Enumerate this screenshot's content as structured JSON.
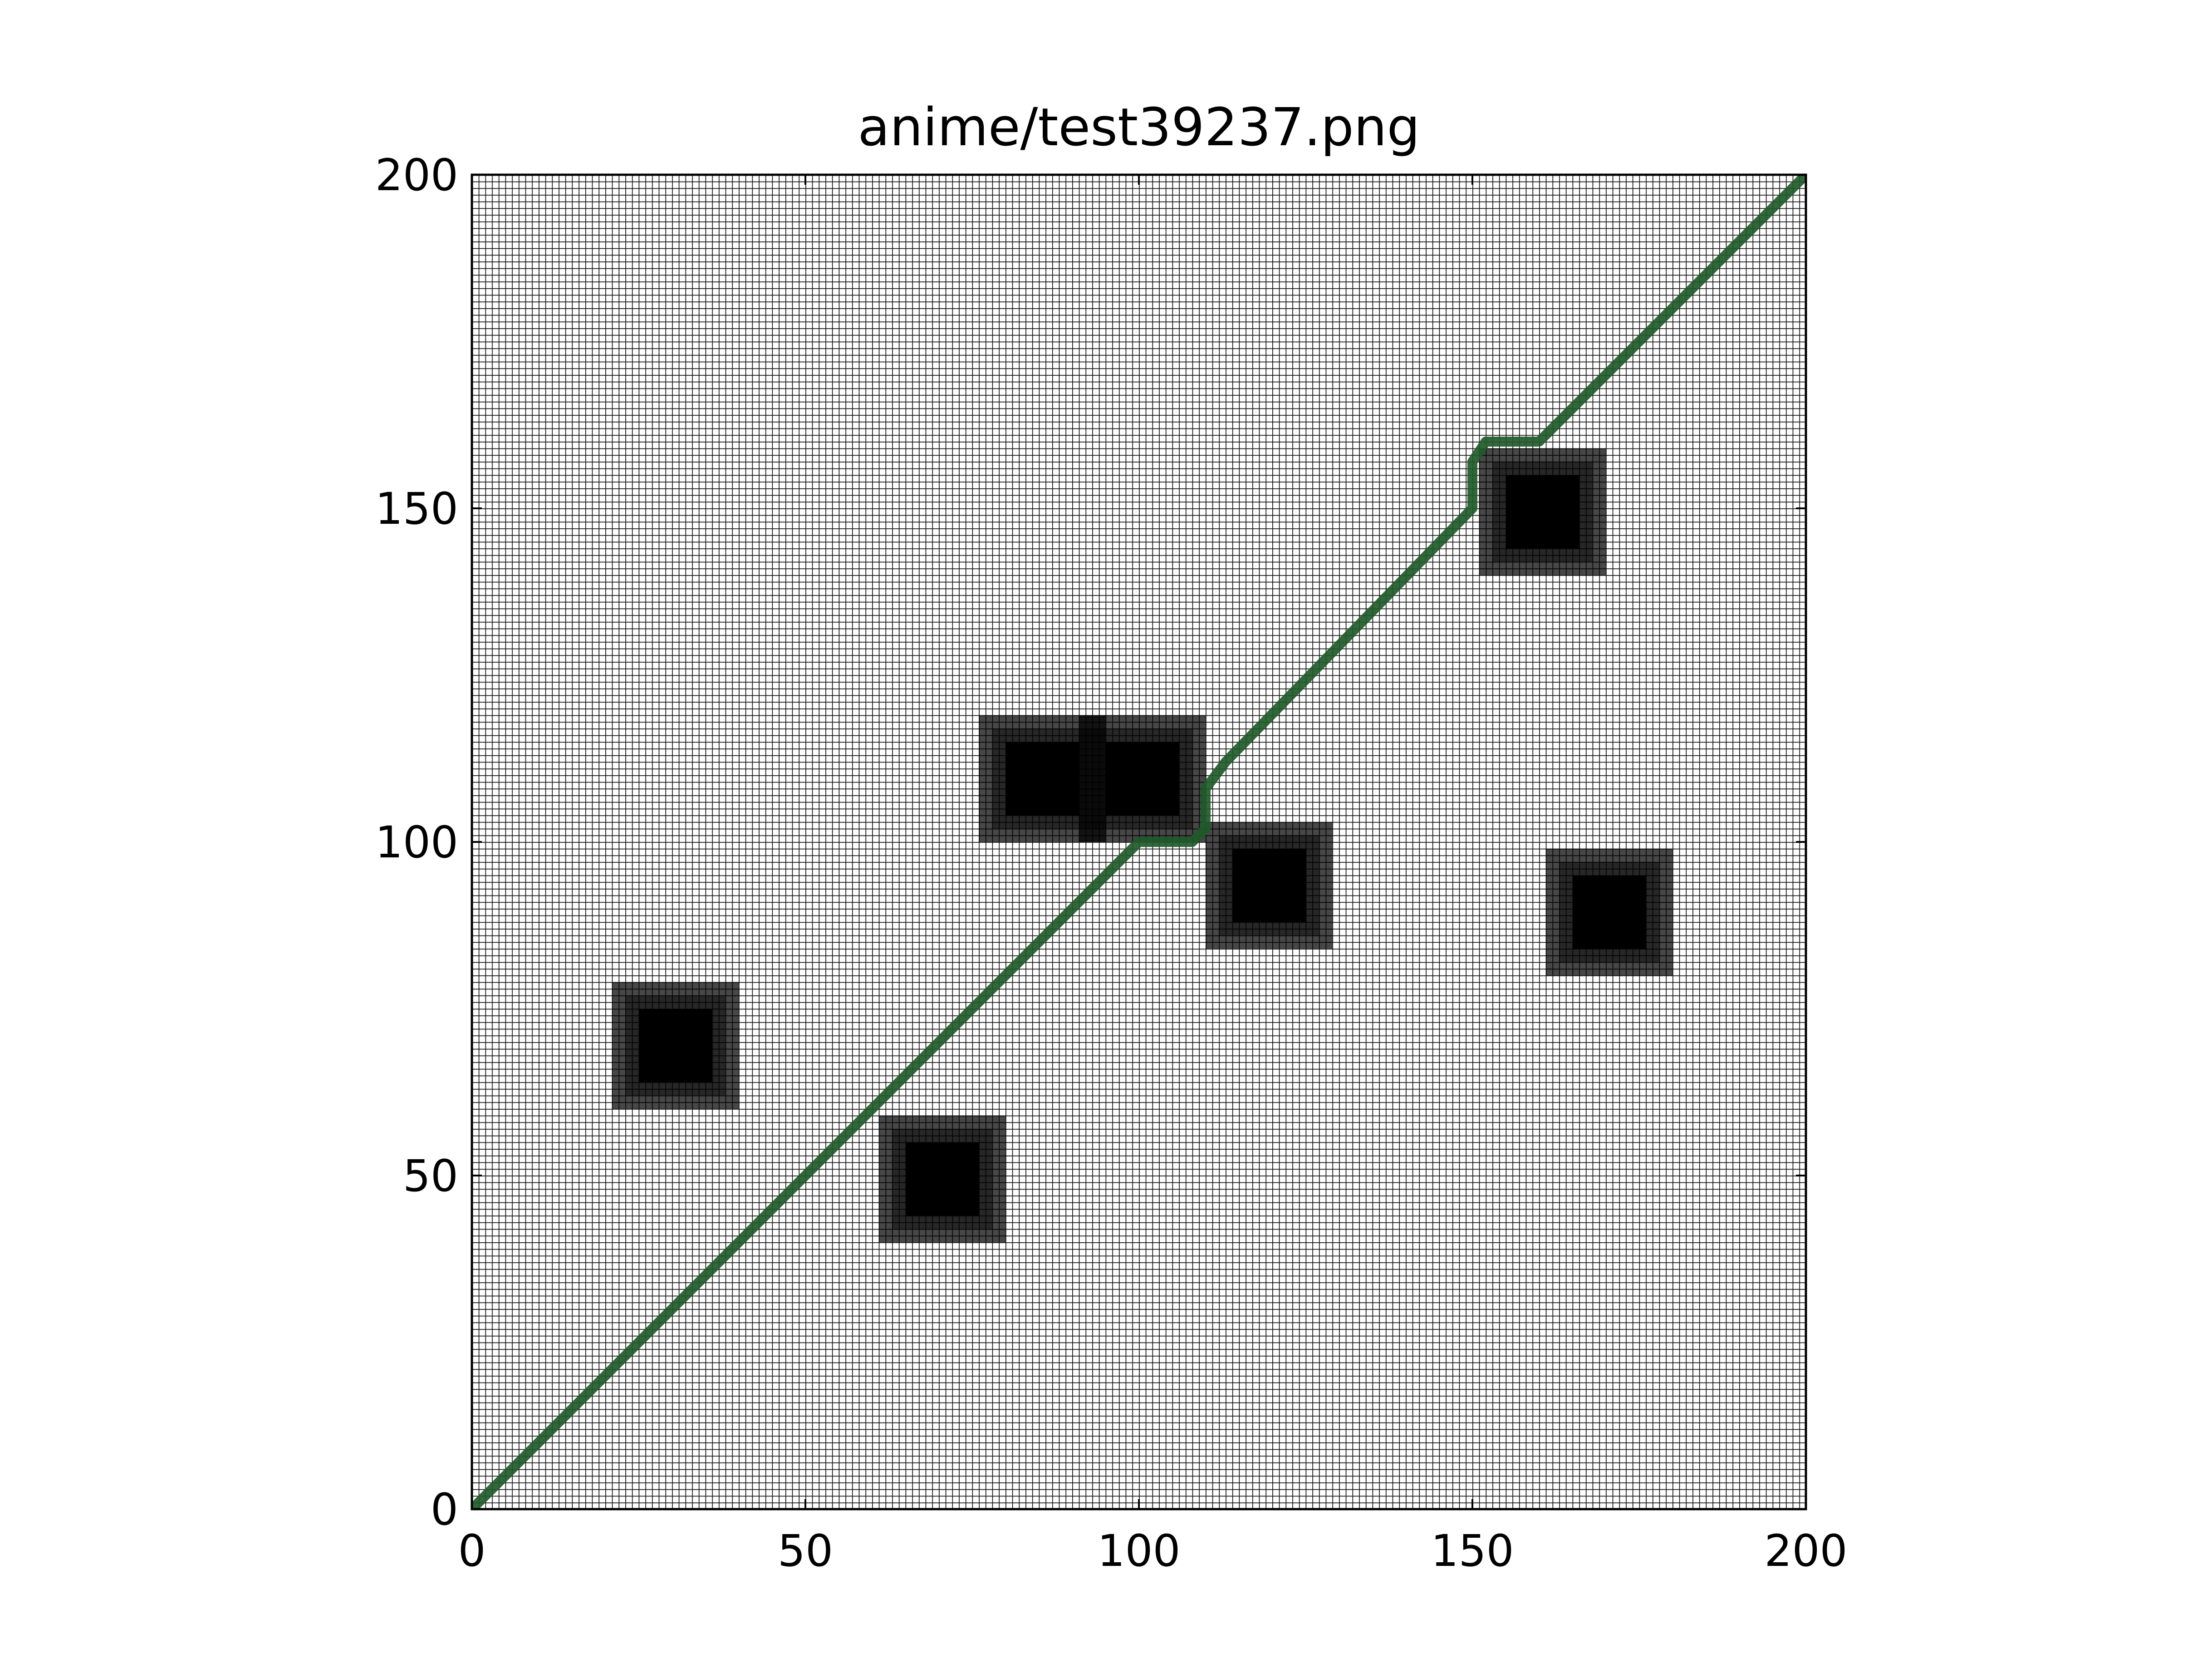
{
  "chart_data": {
    "type": "heatmap",
    "title": "anime/test39237.png",
    "xlabel": "",
    "ylabel": "",
    "xlim": [
      0,
      200
    ],
    "ylim": [
      0,
      200
    ],
    "x_ticks": [
      "0",
      "50",
      "100",
      "150",
      "200"
    ],
    "y_ticks": [
      "0",
      "50",
      "100",
      "150",
      "200"
    ],
    "grid": "on",
    "grid_cell_size": 1,
    "obstacles": [
      {
        "center": [
          30,
          70
        ],
        "outer": [
          [
            21,
            40
          ],
          [
            60,
            79
          ]
        ],
        "inner": [
          [
            25,
            36
          ],
          [
            64,
            75
          ]
        ]
      },
      {
        "center": [
          70,
          50
        ],
        "outer": [
          [
            61,
            80
          ],
          [
            40,
            59
          ]
        ],
        "inner": [
          [
            65,
            76
          ],
          [
            44,
            55
          ]
        ]
      },
      {
        "center": [
          85,
          110
        ],
        "outer": [
          [
            76,
            95
          ],
          [
            100,
            119
          ]
        ],
        "inner": [
          [
            80,
            91
          ],
          [
            104,
            115
          ]
        ]
      },
      {
        "center": [
          100,
          110
        ],
        "outer": [
          [
            91,
            110
          ],
          [
            100,
            119
          ]
        ],
        "inner": [
          [
            95,
            106
          ],
          [
            104,
            115
          ]
        ]
      },
      {
        "center": [
          119,
          94
        ],
        "outer": [
          [
            110,
            129
          ],
          [
            84,
            103
          ]
        ],
        "inner": [
          [
            114,
            125
          ],
          [
            88,
            99
          ]
        ]
      },
      {
        "center": [
          160,
          150
        ],
        "outer": [
          [
            151,
            170
          ],
          [
            140,
            159
          ]
        ],
        "inner": [
          [
            155,
            166
          ],
          [
            144,
            155
          ]
        ]
      },
      {
        "center": [
          170,
          90
        ],
        "outer": [
          [
            161,
            180
          ],
          [
            80,
            99
          ]
        ],
        "inner": [
          [
            165,
            176
          ],
          [
            84,
            95
          ]
        ]
      }
    ],
    "series": [
      {
        "type": "line",
        "color": "#1f5a2a",
        "points": [
          [
            0,
            0
          ],
          [
            100,
            100
          ],
          [
            108,
            100
          ],
          [
            110,
            102
          ],
          [
            110,
            108
          ],
          [
            113,
            112
          ],
          [
            150,
            150
          ],
          [
            150,
            157
          ],
          [
            152,
            160
          ],
          [
            160,
            160
          ],
          [
            200,
            200
          ]
        ]
      }
    ]
  }
}
